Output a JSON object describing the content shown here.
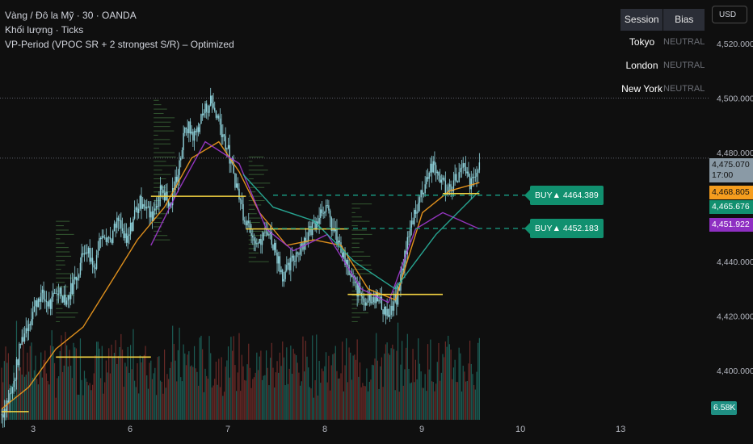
{
  "legend": {
    "line1": "Vàng / Đô la Mỹ · 30 · OANDA",
    "line2": "Khối lượng · Ticks",
    "line3": "VP-Period (VPOC SR + 2 strongest S/R) – Optimized"
  },
  "currency_button": "USD",
  "session_table": {
    "header": [
      "Session",
      "Bias"
    ],
    "rows": [
      {
        "session": "Tokyo",
        "bias": "NEUTRAL"
      },
      {
        "session": "London",
        "bias": "NEUTRAL"
      },
      {
        "session": "New York",
        "bias": "NEUTRAL"
      }
    ]
  },
  "signals": [
    {
      "label": "BUY▲  4464.389",
      "price": 4464.389
    },
    {
      "label": "BUY▲  4452.183",
      "price": 4452.183
    }
  ],
  "price_badges": {
    "last": "4,475.070",
    "countdown": "17:00",
    "orange": "4,468.805",
    "green": "4,465.676",
    "purple": "4,451.922",
    "volume": "6.58K"
  },
  "colors": {
    "background": "#0f0f0f",
    "candle": "#8fd3dc",
    "ma_orange": "#f59d1e",
    "ma_purple": "#a23ad1",
    "ma_teal": "#2ab5a0",
    "vpoc": "#f5d442",
    "volume_up": "#1f6b62",
    "volume_down": "#7a2f2c",
    "signal": "#11906f"
  },
  "chart_data": {
    "type": "candlestick",
    "y_axis_ticks": [
      4520,
      4500,
      4480,
      4460,
      4440,
      4420,
      4400
    ],
    "y_axis_labels": [
      "4,520.000",
      "4,500.000",
      "4,480.000",
      "4,460.000",
      "4,440.000",
      "4,420.000",
      "4,400.000"
    ],
    "ylim": [
      4382,
      4536
    ],
    "x_axis_labels": [
      "3",
      "6",
      "7",
      "8",
      "9",
      "10",
      "13"
    ],
    "grid": false,
    "close_path": [
      [
        0,
        4384
      ],
      [
        8,
        4393
      ],
      [
        14,
        4410
      ],
      [
        20,
        4418
      ],
      [
        28,
        4428
      ],
      [
        36,
        4424
      ],
      [
        42,
        4430
      ],
      [
        48,
        4426
      ],
      [
        56,
        4436
      ],
      [
        62,
        4446
      ],
      [
        68,
        4438
      ],
      [
        74,
        4452
      ],
      [
        80,
        4448
      ],
      [
        86,
        4455
      ],
      [
        92,
        4446
      ],
      [
        98,
        4458
      ],
      [
        104,
        4463
      ],
      [
        110,
        4456
      ],
      [
        118,
        4467
      ],
      [
        124,
        4460
      ],
      [
        130,
        4474
      ],
      [
        136,
        4490
      ],
      [
        142,
        4486
      ],
      [
        148,
        4494
      ],
      [
        154,
        4499
      ],
      [
        160,
        4492
      ],
      [
        166,
        4482
      ],
      [
        172,
        4470
      ],
      [
        178,
        4458
      ],
      [
        184,
        4452
      ],
      [
        190,
        4446
      ],
      [
        196,
        4452
      ],
      [
        202,
        4444
      ],
      [
        208,
        4434
      ],
      [
        214,
        4440
      ],
      [
        220,
        4446
      ],
      [
        226,
        4450
      ],
      [
        232,
        4456
      ],
      [
        238,
        4461
      ],
      [
        244,
        4452
      ],
      [
        250,
        4444
      ],
      [
        256,
        4436
      ],
      [
        262,
        4430
      ],
      [
        268,
        4426
      ],
      [
        274,
        4428
      ],
      [
        280,
        4424
      ],
      [
        286,
        4420
      ],
      [
        292,
        4428
      ],
      [
        298,
        4445
      ],
      [
        304,
        4458
      ],
      [
        310,
        4466
      ],
      [
        316,
        4475
      ],
      [
        322,
        4472
      ],
      [
        328,
        4466
      ],
      [
        334,
        4470
      ],
      [
        340,
        4474
      ],
      [
        346,
        4468
      ],
      [
        352,
        4475
      ]
    ],
    "moving_averages": [
      {
        "color": "orange",
        "values": [
          [
            0,
            4386
          ],
          [
            20,
            4394
          ],
          [
            40,
            4408
          ],
          [
            60,
            4416
          ],
          [
            80,
            4432
          ],
          [
            100,
            4448
          ],
          [
            120,
            4460
          ],
          [
            140,
            4478
          ],
          [
            160,
            4484
          ],
          [
            175,
            4473
          ],
          [
            190,
            4458
          ],
          [
            210,
            4446
          ],
          [
            230,
            4448
          ],
          [
            250,
            4446
          ],
          [
            270,
            4430
          ],
          [
            290,
            4426
          ],
          [
            310,
            4458
          ],
          [
            330,
            4466
          ],
          [
            352,
            4469
          ]
        ]
      },
      {
        "color": "purple",
        "values": [
          [
            110,
            4446
          ],
          [
            130,
            4466
          ],
          [
            150,
            4484
          ],
          [
            175,
            4476
          ],
          [
            195,
            4452
          ],
          [
            215,
            4444
          ],
          [
            240,
            4450
          ],
          [
            265,
            4430
          ],
          [
            285,
            4425
          ],
          [
            305,
            4452
          ],
          [
            325,
            4458
          ],
          [
            352,
            4452
          ]
        ]
      },
      {
        "color": "teal",
        "values": [
          [
            178,
            4472
          ],
          [
            200,
            4460
          ],
          [
            230,
            4455
          ],
          [
            260,
            4440
          ],
          [
            290,
            4430
          ],
          [
            320,
            4450
          ],
          [
            352,
            4466
          ]
        ]
      }
    ],
    "vpoc_segments": [
      {
        "from": 0,
        "to": 20,
        "price": 4385
      },
      {
        "from": 40,
        "to": 110,
        "price": 4405
      },
      {
        "from": 110,
        "to": 180,
        "price": 4464
      },
      {
        "from": 180,
        "to": 255,
        "price": 4452
      },
      {
        "from": 255,
        "to": 325,
        "price": 4428
      },
      {
        "from": 325,
        "to": 352,
        "price": 4465
      }
    ],
    "dotted_levels": [
      4500,
      4478
    ]
  }
}
